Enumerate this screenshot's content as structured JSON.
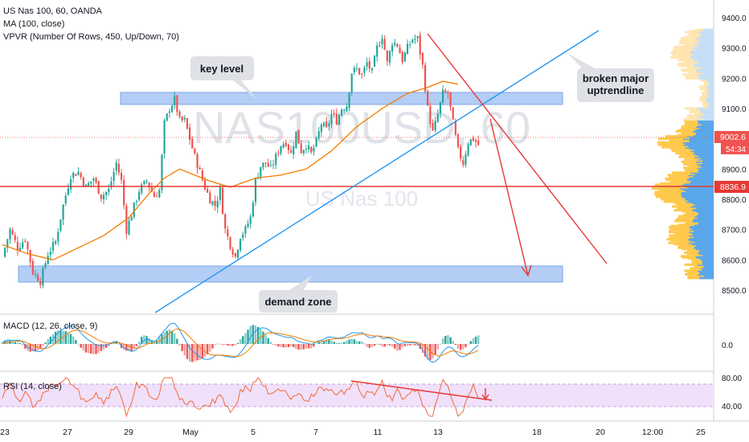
{
  "header": {
    "symbol_line": "US Nas 100, 60, OANDA",
    "ma_line": "MA (100, close)",
    "vpvr_line": "VPVR (Number Of Rows, 450, Up/Down, 70)"
  },
  "watermark": {
    "symbol": "NAS100USD, 60",
    "name": "US Nas 100"
  },
  "annotations": {
    "key_level": "key level",
    "demand_zone": "demand zone",
    "broken_trendline": "broken major\nuptrendline"
  },
  "price_scale": {
    "ticks": [
      "9400.0",
      "9300.0",
      "9200.0",
      "9100.0",
      "9000.0",
      "8900.0",
      "8800.0",
      "8700.0",
      "8600.0",
      "8500.0"
    ],
    "last_price": "9002.6",
    "countdown": "54:34",
    "level_label": "8836.9"
  },
  "macd_panel": {
    "label": "MACD (12, 26, close, 9)",
    "zero_tick": "0.0"
  },
  "rsi_panel": {
    "label": "RSI (14, close)",
    "ticks": [
      "80.00",
      "40.00"
    ]
  },
  "time_axis": {
    "ticks": [
      "23",
      "27",
      "29",
      "May",
      "5",
      "7",
      "11",
      "13",
      "18",
      "20",
      "12:00",
      "25"
    ]
  },
  "colors": {
    "bull": "#26a69a",
    "bear": "#ef5350",
    "ma": "#f57c00",
    "trendline": "#2196f3",
    "arrows": "#e53935",
    "zone_fill": "#b3cdf5",
    "vpvr_up": "#ffc94d",
    "vpvr_down": "#5aa7ea",
    "rsi_line": "#f06a3c",
    "rsi_band": "#f1e0fa",
    "macd_line": "#2196f3",
    "signal_line": "#f57c00"
  },
  "chart_data": {
    "type": "candlestick",
    "title": "US Nas 100, 60, OANDA",
    "timeframe": "60",
    "ylim": [
      8470,
      9450
    ],
    "last_price": 9002.6,
    "horizontal_level": 8836.9,
    "close_path": [
      [
        0,
        8610
      ],
      [
        3,
        8700
      ],
      [
        6,
        8640
      ],
      [
        9,
        8670
      ],
      [
        12,
        8560
      ],
      [
        15,
        8530
      ],
      [
        18,
        8620
      ],
      [
        21,
        8660
      ],
      [
        24,
        8780
      ],
      [
        27,
        8880
      ],
      [
        30,
        8890
      ],
      [
        33,
        8840
      ],
      [
        36,
        8870
      ],
      [
        39,
        8810
      ],
      [
        42,
        8830
      ],
      [
        45,
        8920
      ],
      [
        47,
        8860
      ],
      [
        49,
        8700
      ],
      [
        51,
        8750
      ],
      [
        54,
        8830
      ],
      [
        57,
        8860
      ],
      [
        60,
        8810
      ],
      [
        62,
        8830
      ],
      [
        64,
        9050
      ],
      [
        66,
        9100
      ],
      [
        68,
        9130
      ],
      [
        70,
        9060
      ],
      [
        72,
        9060
      ],
      [
        74,
        9000
      ],
      [
        76,
        8940
      ],
      [
        78,
        8890
      ],
      [
        80,
        8840
      ],
      [
        82,
        8800
      ],
      [
        84,
        8780
      ],
      [
        86,
        8830
      ],
      [
        88,
        8700
      ],
      [
        90,
        8650
      ],
      [
        92,
        8610
      ],
      [
        94,
        8680
      ],
      [
        96,
        8700
      ],
      [
        98,
        8740
      ],
      [
        100,
        8860
      ],
      [
        102,
        8910
      ],
      [
        104,
        8920
      ],
      [
        106,
        8900
      ],
      [
        108,
        8940
      ],
      [
        110,
        8980
      ],
      [
        112,
        8990
      ],
      [
        114,
        8950
      ],
      [
        116,
        9020
      ],
      [
        118,
        8960
      ],
      [
        120,
        8980
      ],
      [
        122,
        8950
      ],
      [
        124,
        8990
      ],
      [
        126,
        9050
      ],
      [
        128,
        9030
      ],
      [
        130,
        9080
      ],
      [
        132,
        9060
      ],
      [
        134,
        9100
      ],
      [
        136,
        9110
      ],
      [
        138,
        9220
      ],
      [
        140,
        9230
      ],
      [
        142,
        9210
      ],
      [
        144,
        9250
      ],
      [
        146,
        9220
      ],
      [
        148,
        9300
      ],
      [
        150,
        9340
      ],
      [
        152,
        9250
      ],
      [
        154,
        9320
      ],
      [
        156,
        9310
      ],
      [
        158,
        9260
      ],
      [
        160,
        9300
      ],
      [
        162,
        9330
      ],
      [
        164,
        9330
      ],
      [
        166,
        9240
      ],
      [
        168,
        9100
      ],
      [
        170,
        9020
      ],
      [
        172,
        9080
      ],
      [
        174,
        9150
      ],
      [
        176,
        9150
      ],
      [
        178,
        9050
      ],
      [
        180,
        8960
      ],
      [
        182,
        8920
      ],
      [
        184,
        8990
      ],
      [
        186,
        9000
      ],
      [
        188,
        8980
      ]
    ],
    "ma_100": [
      [
        0,
        8650
      ],
      [
        10,
        8620
      ],
      [
        20,
        8600
      ],
      [
        30,
        8640
      ],
      [
        40,
        8680
      ],
      [
        50,
        8740
      ],
      [
        58,
        8820
      ],
      [
        64,
        8870
      ],
      [
        70,
        8900
      ],
      [
        76,
        8880
      ],
      [
        82,
        8860
      ],
      [
        90,
        8840
      ],
      [
        100,
        8870
      ],
      [
        110,
        8880
      ],
      [
        120,
        8900
      ],
      [
        130,
        8960
      ],
      [
        140,
        9040
      ],
      [
        150,
        9100
      ],
      [
        160,
        9150
      ],
      [
        168,
        9170
      ],
      [
        174,
        9190
      ],
      [
        180,
        9180
      ]
    ],
    "zones": [
      {
        "name": "key level",
        "from": 9110,
        "to": 9150
      },
      {
        "name": "demand zone",
        "from": 8525,
        "to": 8575
      }
    ],
    "trendline": {
      "from": [
        8,
        8500
      ],
      "to": [
        238,
        9440
      ]
    },
    "projection_arrows": [
      {
        "from": [
          165,
          9350
        ],
        "to": [
          237,
          8590
        ]
      },
      {
        "from": [
          193,
          9060
        ],
        "to": [
          208,
          8545
        ]
      }
    ],
    "vpvr": {
      "rows_price_from": 8540,
      "rows_price_to": 9360
    },
    "macd": {
      "label": "MACD (12, 26, close, 9)",
      "zero": 0.0
    },
    "rsi": {
      "label": "RSI (14, close)",
      "levels": [
        80,
        40
      ],
      "divergence_line": true
    },
    "x_ticks": [
      "23",
      "27",
      "29",
      "May",
      "5",
      "7",
      "11",
      "13",
      "18",
      "20",
      "12:00",
      "25"
    ]
  }
}
